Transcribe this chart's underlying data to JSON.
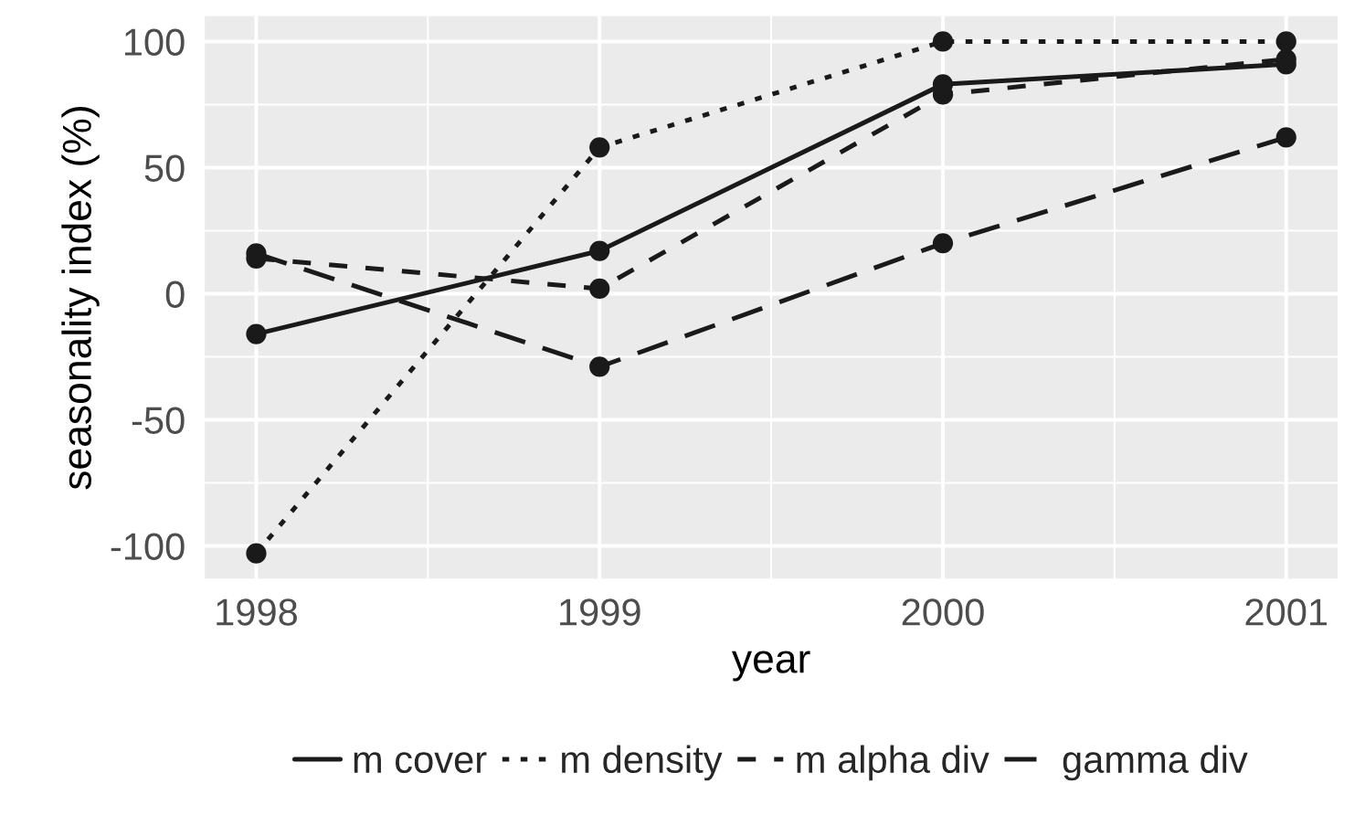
{
  "chart_data": {
    "type": "line",
    "xlabel": "year",
    "ylabel": "seasonality index (%)",
    "x": [
      1998,
      1999,
      2000,
      2001
    ],
    "series": [
      {
        "name": "m cover",
        "color": "#1a1a1a",
        "line_style": "solid",
        "values": [
          -16,
          17,
          83,
          91
        ]
      },
      {
        "name": "m density",
        "color": "#1a1a1a",
        "line_style": "dotted",
        "values": [
          -103,
          58,
          100,
          100
        ]
      },
      {
        "name": "m alpha div",
        "color": "#1a1a1a",
        "line_style": "dashed",
        "values": [
          14,
          2,
          79,
          93
        ]
      },
      {
        "name": "gamma div",
        "color": "#1a1a1a",
        "line_style": "dashed",
        "values": [
          16,
          -29,
          20,
          62
        ]
      }
    ],
    "xlim": [
      1997.85,
      2001.15
    ],
    "ylim": [
      -113,
      110
    ],
    "xticks": [
      1998,
      1999,
      2000,
      2001
    ],
    "yticks": [
      -100,
      -50,
      0,
      50,
      100
    ],
    "marker": "circle",
    "grid": true,
    "legend": "bottom"
  }
}
